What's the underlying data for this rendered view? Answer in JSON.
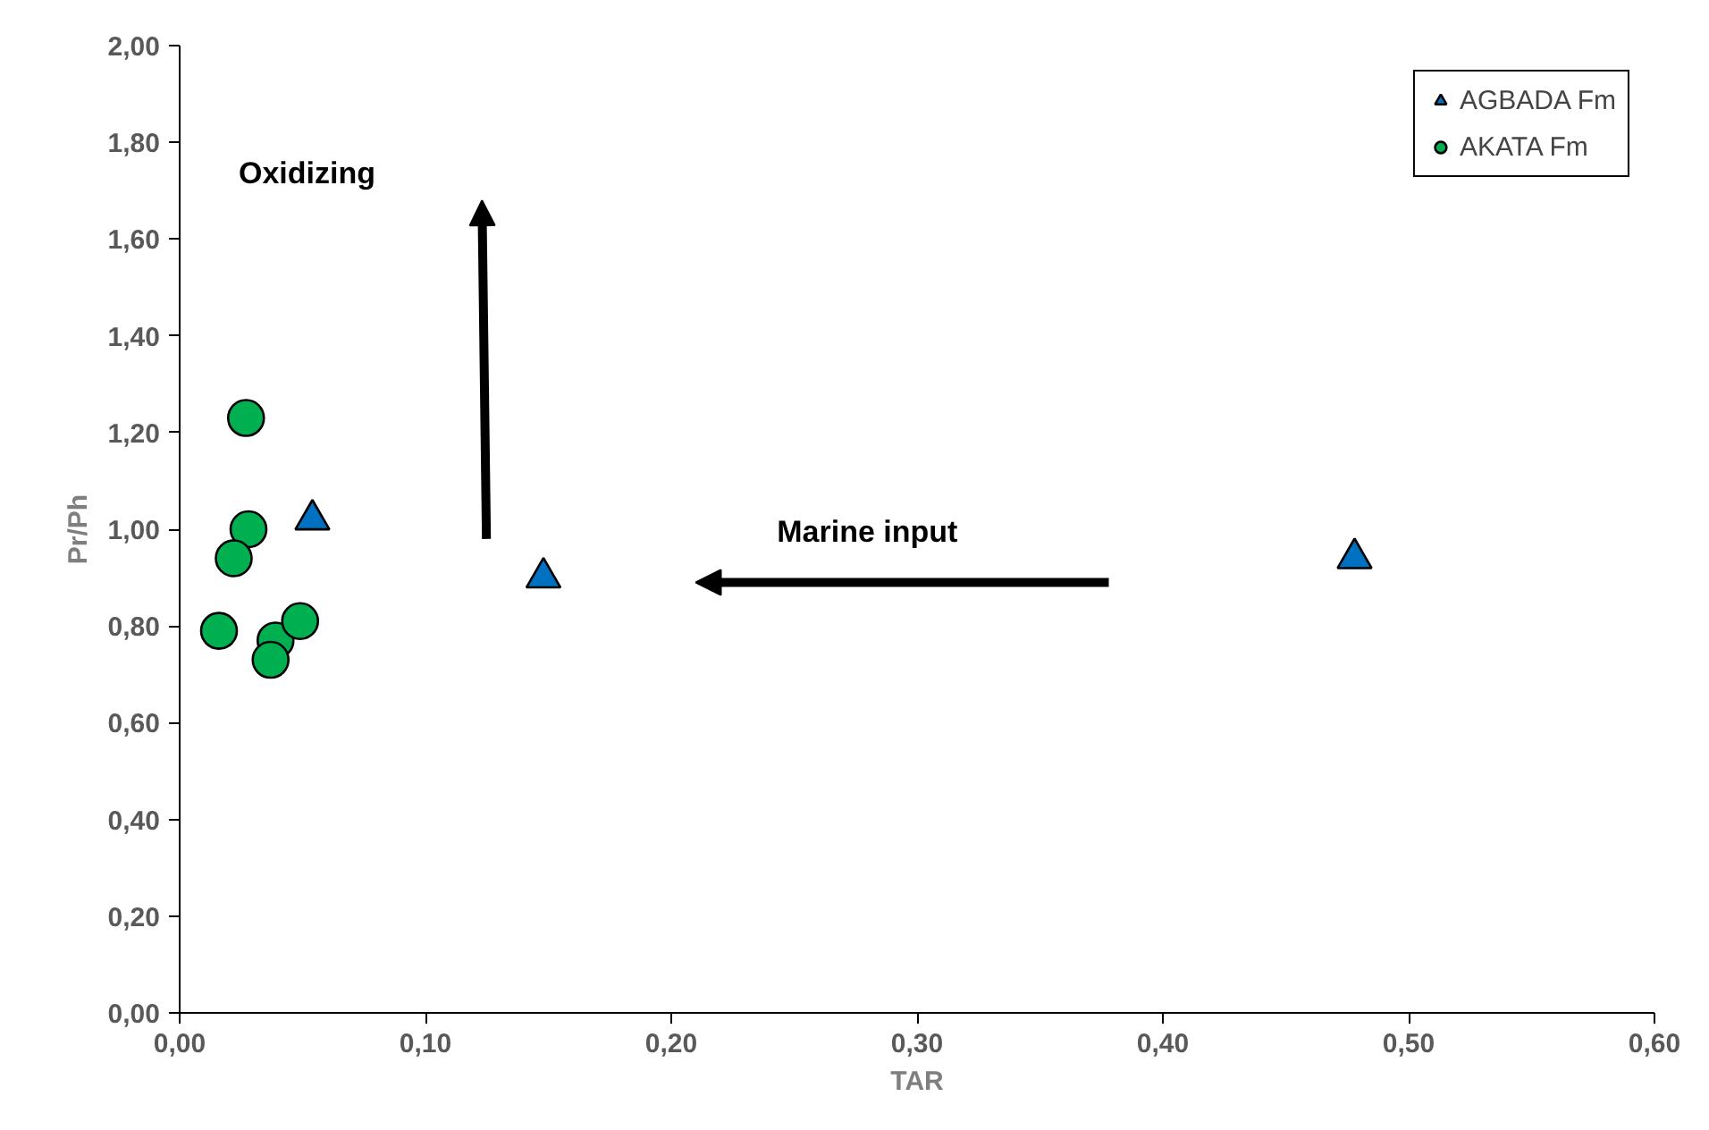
{
  "chart_data": {
    "type": "scatter",
    "xlabel": "TAR",
    "ylabel": "Pr/Ph",
    "series": [
      {
        "name": "AGBADA Fm",
        "color": "#0070c0",
        "marker": "triangle",
        "x": [
          0.054,
          0.148,
          0.478
        ],
        "values": [
          1.02,
          0.9,
          0.94
        ]
      },
      {
        "name": "AKATA Fm",
        "color": "#00b050",
        "marker": "circle",
        "x": [
          0.027,
          0.028,
          0.022,
          0.016,
          0.039,
          0.049,
          0.037
        ],
        "values": [
          1.23,
          1.0,
          0.94,
          0.79,
          0.77,
          0.81,
          0.73
        ]
      }
    ],
    "xlim": [
      0,
      0.6
    ],
    "ylim": [
      0,
      2
    ],
    "xticks": [
      {
        "value": 0,
        "label": "0,00"
      },
      {
        "value": 0.1,
        "label": "0,10"
      },
      {
        "value": 0.2,
        "label": "0,20"
      },
      {
        "value": 0.3,
        "label": "0,30"
      },
      {
        "value": 0.4,
        "label": "0,40"
      },
      {
        "value": 0.5,
        "label": "0,50"
      },
      {
        "value": 0.6,
        "label": "0,60"
      }
    ],
    "yticks": [
      {
        "value": 0,
        "label": "0,00"
      },
      {
        "value": 0.2,
        "label": "0,20"
      },
      {
        "value": 0.4,
        "label": "0,40"
      },
      {
        "value": 0.6,
        "label": "0,60"
      },
      {
        "value": 0.8,
        "label": "0,80"
      },
      {
        "value": 1.0,
        "label": "1,00"
      },
      {
        "value": 1.2,
        "label": "1,20"
      },
      {
        "value": 1.4,
        "label": "1,40"
      },
      {
        "value": 1.6,
        "label": "1,60"
      },
      {
        "value": 1.8,
        "label": "1,80"
      },
      {
        "value": 2.0,
        "label": "2,00"
      }
    ],
    "annotations": [
      "Oxidizing",
      "Marine input"
    ],
    "grid": false,
    "legend": "top right"
  }
}
